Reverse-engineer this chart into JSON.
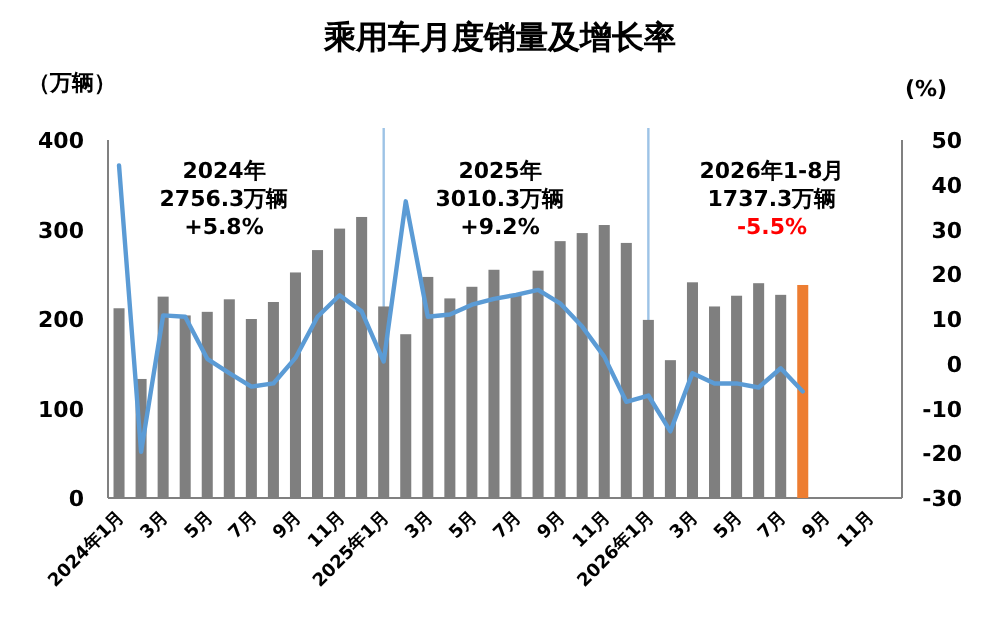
{
  "chart_data": {
    "type": "bar",
    "title": "乘用车月度销量及增长率",
    "ylabel": "（万辆）",
    "y2label": "(%)",
    "categories": [
      "2024年1月",
      null,
      "3月",
      null,
      "5月",
      null,
      "7月",
      null,
      "9月",
      null,
      "11月",
      null,
      "2025年1月",
      null,
      "3月",
      null,
      "5月",
      null,
      "7月",
      null,
      "9月",
      null,
      "11月",
      null,
      "2026年1月",
      null,
      "3月",
      null,
      "5月",
      null,
      "7月",
      null,
      "9月",
      null,
      "11月",
      null
    ],
    "series": [
      {
        "values": [
          212,
          133,
          225,
          204,
          208,
          222,
          200,
          219,
          252,
          277,
          301,
          314,
          214,
          183,
          247,
          223,
          236,
          255,
          227,
          254,
          287,
          296,
          305,
          285,
          199,
          154,
          241,
          214,
          226,
          240,
          227,
          238,
          null,
          null,
          null,
          null
        ],
        "colors": [
          "#7f7f7f",
          "#7f7f7f",
          "#7f7f7f",
          "#7f7f7f",
          "#7f7f7f",
          "#7f7f7f",
          "#7f7f7f",
          "#7f7f7f",
          "#7f7f7f",
          "#7f7f7f",
          "#7f7f7f",
          "#7f7f7f",
          "#7f7f7f",
          "#7f7f7f",
          "#7f7f7f",
          "#7f7f7f",
          "#7f7f7f",
          "#7f7f7f",
          "#7f7f7f",
          "#7f7f7f",
          "#7f7f7f",
          "#7f7f7f",
          "#7f7f7f",
          "#7f7f7f",
          "#7f7f7f",
          "#7f7f7f",
          "#7f7f7f",
          "#7f7f7f",
          "#7f7f7f",
          "#7f7f7f",
          "#7f7f7f",
          "#ed7d31",
          null,
          null,
          null,
          null
        ]
      },
      {
        "type": "line",
        "axis": "y2",
        "color": "#5b9bd5",
        "values": [
          44.3,
          -19.7,
          10.8,
          10.5,
          1.1,
          -2.1,
          -5.1,
          -4.4,
          1.3,
          10.5,
          15.3,
          11.7,
          0.5,
          36.3,
          10.5,
          11,
          13.2,
          14.5,
          15.4,
          16.5,
          13.5,
          8.3,
          1.6,
          -8.5,
          -7.1,
          -15.1,
          -2.1,
          -4.4,
          -4.4,
          -5.3,
          -1,
          -6.2,
          null,
          null,
          null,
          null
        ]
      }
    ],
    "ylim": [
      0,
      400
    ],
    "yticks": [
      0,
      100,
      200,
      300,
      400
    ],
    "y2lim": [
      -30,
      50
    ],
    "y2ticks": [
      -30,
      -20,
      -10,
      0,
      10,
      20,
      30,
      40,
      50
    ],
    "ref_lines": [
      {
        "axis": "x",
        "value": "2025年1月",
        "color": "#9dc3e6"
      },
      {
        "axis": "x",
        "value": "2026年1月",
        "color": "#9dc3e6"
      }
    ],
    "annotations": [
      "2024年",
      "2756.3万辆",
      "+5.8%",
      "2025年",
      "3010.3万辆",
      "+9.2%",
      "2026年1-8月",
      "1737.3万辆",
      "-5.5%"
    ]
  }
}
